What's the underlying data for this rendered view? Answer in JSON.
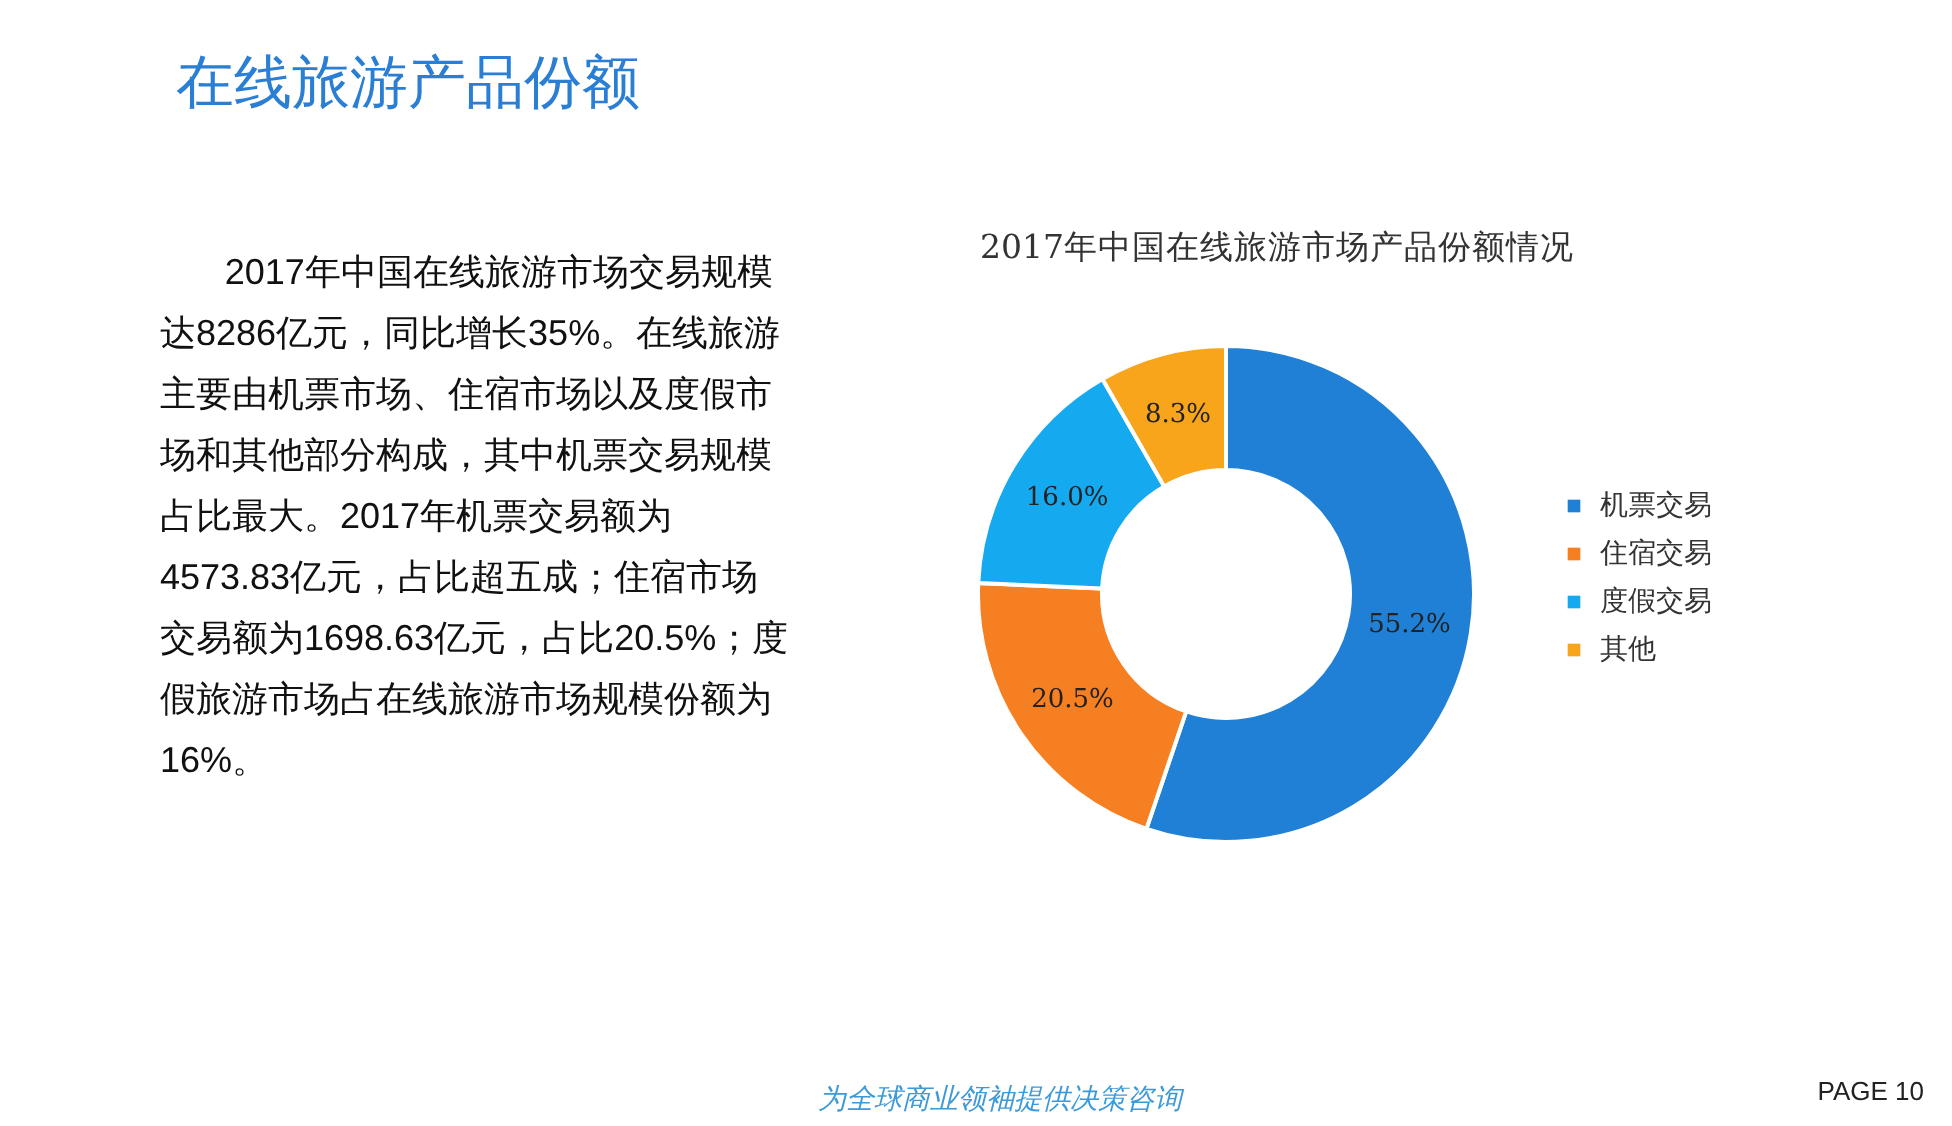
{
  "chart_data": {
    "type": "donut",
    "title": "在线旅游产品份额",
    "subtitle": "2017年中国在线旅游市场产品份额情况",
    "categories": [
      "机票交易",
      "住宿交易",
      "度假交易",
      "其他"
    ],
    "values": [
      55.2,
      20.5,
      16.0,
      8.3
    ],
    "colors": [
      "#1f80d6",
      "#f67f21",
      "#15aaf0",
      "#f8a51c"
    ],
    "value_labels": [
      "55.2%",
      "20.5%",
      "16.0%",
      "8.3%"
    ],
    "legend": "right",
    "annotations": [
      "2017年中国在线旅游市场交易规模达8286亿元，同比增长35%。在线旅游主要由机票市场、住宿市场以及度假市场和其他部分构成，其中机票交易规模占比最大。2017年机票交易额为4573.83亿元，占比超五成；住宿市场交易额为1698.63亿元，占比20.5%；度假旅游市场占在线旅游市场规模份额为16%。",
      "为全球商业领袖提供决策咨询",
      "PAGE 10"
    ]
  }
}
